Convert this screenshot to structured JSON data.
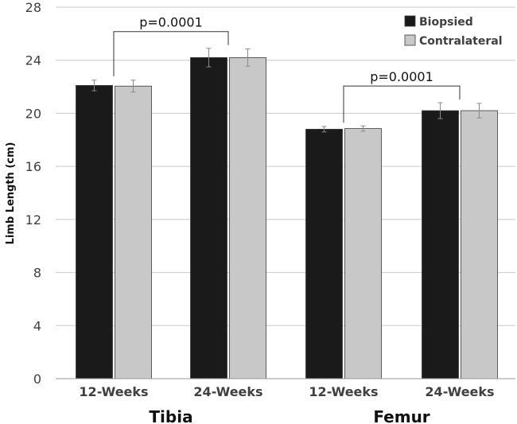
{
  "chart_data": {
    "type": "bar",
    "title": "",
    "xlabel": "",
    "ylabel": "Limb Length (cm)",
    "ylim": [
      0,
      28
    ],
    "yticks": [
      "0",
      "4",
      "8",
      "12",
      "16",
      "20",
      "24",
      "28"
    ],
    "grid": true,
    "legend_position": "top-right",
    "categories": [
      "12-Weeks",
      "24-Weeks",
      "12-Weeks",
      "24-Weeks"
    ],
    "groups": [
      {
        "label": "Tibia",
        "categories": [
          0,
          1
        ]
      },
      {
        "label": "Femur",
        "categories": [
          2,
          3
        ]
      }
    ],
    "series": [
      {
        "name": "Biopsied",
        "color": "#1a1a1a",
        "values": [
          22.1,
          24.2,
          18.8,
          20.2
        ],
        "errors": [
          0.4,
          0.7,
          0.2,
          0.6
        ]
      },
      {
        "name": "Contralateral",
        "color": "#c8c8c8",
        "values": [
          22.05,
          24.2,
          18.85,
          20.2
        ],
        "errors": [
          0.45,
          0.65,
          0.2,
          0.55
        ]
      }
    ],
    "annotations": [
      {
        "text": "p=0.0001",
        "from_category": 0,
        "to_category": 1
      },
      {
        "text": "p=0.0001",
        "from_category": 2,
        "to_category": 3
      }
    ]
  }
}
